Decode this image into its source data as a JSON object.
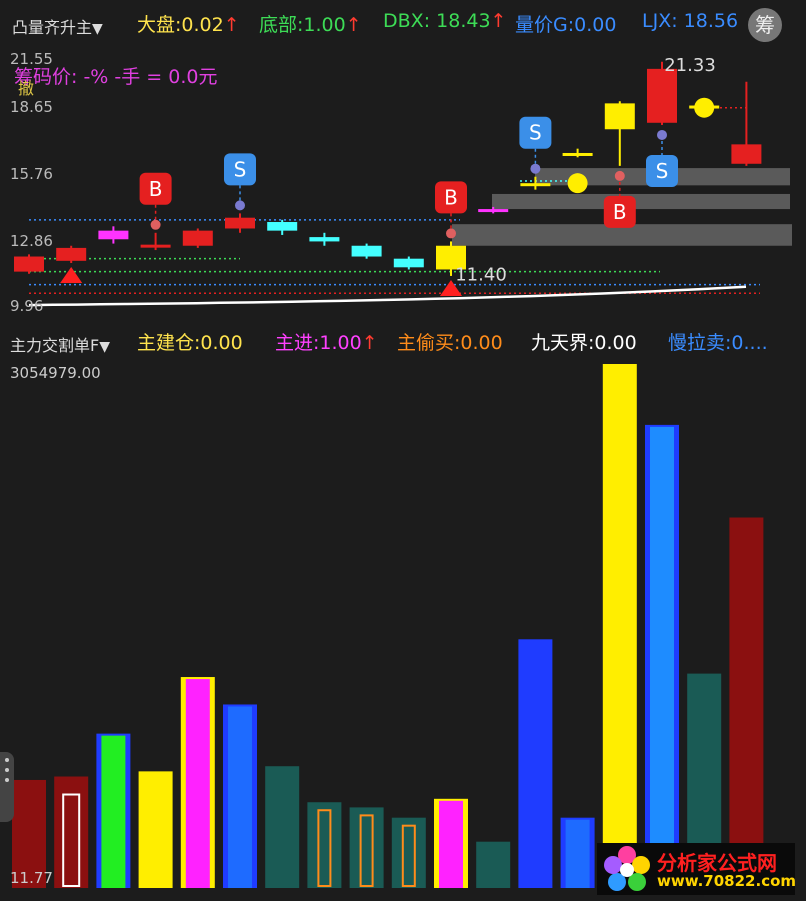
{
  "header": {
    "indicator_name": "凸量齐升主",
    "items": [
      {
        "label": "大盘",
        "value": "0.02",
        "arrow": "↑",
        "color": "#ffe34d"
      },
      {
        "label": "底部",
        "value": "1.00",
        "arrow": "↑",
        "color": "#3ddc56"
      },
      {
        "label": "DBX",
        "value": "18.43",
        "arrow": "↑",
        "color": "#3ddc56"
      },
      {
        "label": "量价G",
        "value": "0.00",
        "arrow": "",
        "color": "#3a8cff"
      },
      {
        "label": "LJX",
        "value": "18.56",
        "arrow": "",
        "color": "#3a8cff"
      }
    ],
    "calc_button": "筹",
    "overlay_text": "筹码价: -% -手 = 0.0元",
    "overlay_icon_label": "撤"
  },
  "kline": {
    "y_ticks": [
      "21.55",
      "18.65",
      "15.76",
      "12.86",
      "9.96"
    ],
    "ylim": [
      9.96,
      21.55
    ],
    "labels": {
      "high": "21.33",
      "low": "11.40"
    }
  },
  "sub": {
    "indicator_name": "主力交割单F",
    "items": [
      {
        "label": "主建仓",
        "value": "0.00",
        "arrow": "",
        "color": "#ffe34d"
      },
      {
        "label": "主进",
        "value": "1.00",
        "arrow": "↑",
        "color": "#ff40ff"
      },
      {
        "label": "主偷买",
        "value": "0.00",
        "arrow": "",
        "color": "#ff8c1a"
      },
      {
        "label": "九天界",
        "value": "0.00",
        "arrow": "",
        "color": "#ffffff"
      },
      {
        "label": "慢拉卖",
        "value": "0....",
        "arrow": "",
        "color": "#3a8cff"
      }
    ],
    "y_max": "3054979.00",
    "y_min": "11.77"
  },
  "chart_data": {
    "type": "bar",
    "ylim": [
      11.77,
      3054979.0
    ],
    "bars": [
      {
        "value": 630000,
        "color": "#8b1010",
        "style": "solid"
      },
      {
        "value": 650000,
        "color": "#8b1010",
        "style": "solid",
        "inner": "hollow-white"
      },
      {
        "value": 900000,
        "color": "#22ee22",
        "style": "solid",
        "border": "#1f3cff"
      },
      {
        "value": 680000,
        "color": "#ffee00",
        "style": "solid"
      },
      {
        "value": 1230000,
        "color": "#ff22ff",
        "style": "solid",
        "border": "#ffee00"
      },
      {
        "value": 1070000,
        "color": "#1e6bff",
        "style": "solid",
        "border": "#1f3cff"
      },
      {
        "value": 710000,
        "color": "#1a5b55",
        "style": "solid"
      },
      {
        "value": 500000,
        "color": "#1a5b55",
        "style": "hollow-orange"
      },
      {
        "value": 470000,
        "color": "#1a5b55",
        "style": "hollow-orange"
      },
      {
        "value": 410000,
        "color": "#1a5b55",
        "style": "hollow-orange"
      },
      {
        "value": 520000,
        "color": "#ff22ff",
        "style": "solid",
        "border": "#ffee00"
      },
      {
        "value": 270000,
        "color": "#1a5b55",
        "style": "solid"
      },
      {
        "value": 1450000,
        "color": "#1f3cff",
        "style": "solid"
      },
      {
        "value": 410000,
        "color": "#1e6bff",
        "style": "solid",
        "border": "#1f3cff"
      },
      {
        "value": 3054979,
        "color": "#ffee00",
        "style": "solid"
      },
      {
        "value": 2700000,
        "color": "#1e8cff",
        "style": "solid",
        "border": "#1f3cff"
      },
      {
        "value": 1250000,
        "color": "#1a5b55",
        "style": "solid"
      },
      {
        "value": 2160000,
        "color": "#8b1010",
        "style": "solid"
      }
    ]
  },
  "candles": [
    {
      "open": 11.6,
      "close": 12.3,
      "high": 12.4,
      "low": 11.5,
      "color": "#e52020"
    },
    {
      "open": 12.1,
      "close": 12.7,
      "high": 12.8,
      "low": 12.0,
      "color": "#e52020"
    },
    {
      "open": 13.5,
      "close": 13.1,
      "high": 13.7,
      "low": 12.9,
      "color": "#ff33ff"
    },
    {
      "open": 12.8,
      "close": 12.85,
      "high": 13.4,
      "low": 12.6,
      "color": "#e52020"
    },
    {
      "open": 12.8,
      "close": 13.5,
      "high": 13.6,
      "low": 12.7,
      "color": "#e52020"
    },
    {
      "open": 13.6,
      "close": 14.1,
      "high": 14.3,
      "low": 13.4,
      "color": "#e52020"
    },
    {
      "open": 13.9,
      "close": 13.5,
      "high": 14.0,
      "low": 13.3,
      "color": "#44ffff"
    },
    {
      "open": 13.2,
      "close": 13.0,
      "high": 13.4,
      "low": 12.8,
      "color": "#44ffff"
    },
    {
      "open": 12.8,
      "close": 12.3,
      "high": 12.9,
      "low": 12.2,
      "color": "#44ffff"
    },
    {
      "open": 12.2,
      "close": 11.8,
      "high": 12.3,
      "low": 11.7,
      "color": "#44ffff"
    },
    {
      "open": 12.8,
      "close": 11.7,
      "high": 13.0,
      "low": 11.4,
      "color": "#ffee00"
    },
    {
      "open": 14.5,
      "close": 14.4,
      "high": 14.6,
      "low": 14.3,
      "color": "#ff33ff"
    },
    {
      "open": 15.7,
      "close": 15.6,
      "high": 16.0,
      "low": 15.4,
      "color": "#ffee00"
    },
    {
      "open": 17.0,
      "close": 17.1,
      "high": 17.3,
      "low": 16.9,
      "color": "#ffee00"
    },
    {
      "open": 18.2,
      "close": 19.4,
      "high": 19.5,
      "low": 16.5,
      "color": "#ffee00"
    },
    {
      "open": 18.5,
      "close": 21.0,
      "high": 21.33,
      "low": 18.4,
      "color": "#e52020"
    },
    {
      "open": 19.3,
      "close": 19.2,
      "high": 19.6,
      "low": 19.0,
      "color": "#ffee00"
    },
    {
      "open": 17.5,
      "close": 16.6,
      "high": 20.4,
      "low": 16.5,
      "color": "#e52020"
    }
  ],
  "signals": [
    {
      "idx": 3,
      "type": "B",
      "pos": "above"
    },
    {
      "idx": 5,
      "type": "S",
      "pos": "above"
    },
    {
      "idx": 10,
      "type": "B",
      "pos": "above"
    },
    {
      "idx": 12,
      "type": "S",
      "pos": "above"
    },
    {
      "idx": 14,
      "type": "B",
      "pos": "below"
    },
    {
      "idx": 15,
      "type": "S",
      "pos": "below"
    }
  ],
  "triangles": [
    1,
    10
  ],
  "colors": {
    "red": "#e52020",
    "blue": "#3b8fe8",
    "panel": "#1c1c1c",
    "grey_band": "#5a5a5a"
  },
  "logo": {
    "title": "分析家公式网",
    "url": "www.70822.com"
  }
}
